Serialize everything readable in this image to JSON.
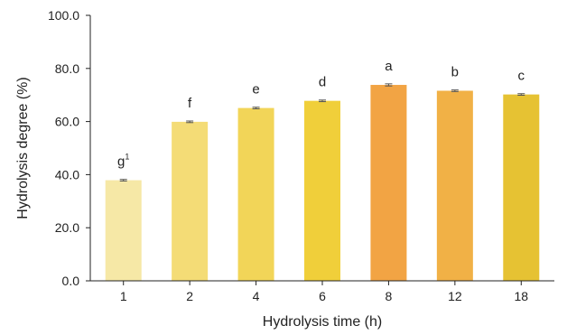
{
  "chart_data": {
    "type": "bar",
    "categories": [
      "1",
      "2",
      "4",
      "6",
      "8",
      "12",
      "18"
    ],
    "values": [
      37.9,
      59.9,
      65.1,
      67.8,
      73.8,
      71.6,
      70.2
    ],
    "errors": [
      0.3,
      0.3,
      0.3,
      0.3,
      0.4,
      0.3,
      0.3
    ],
    "significance_letters": [
      "g",
      "f",
      "e",
      "d",
      "a",
      "b",
      "c"
    ],
    "first_letter_superscript": "1",
    "bar_colors": [
      "#f6e8a6",
      "#f4dc76",
      "#f2d558",
      "#f0cf3a",
      "#f2a444",
      "#f1b146",
      "#e6c233"
    ],
    "error_bar_color": "#555555",
    "xlabel": "Hydrolysis time (h)",
    "ylabel": "Hydrolysis degree (%)",
    "ylim": [
      0,
      100
    ],
    "yticks": [
      "0.0",
      "20.0",
      "40.0",
      "60.0",
      "80.0",
      "100.0"
    ],
    "ytick_values": [
      0,
      20,
      40,
      60,
      80,
      100
    ],
    "grid": false,
    "legend": "none"
  }
}
